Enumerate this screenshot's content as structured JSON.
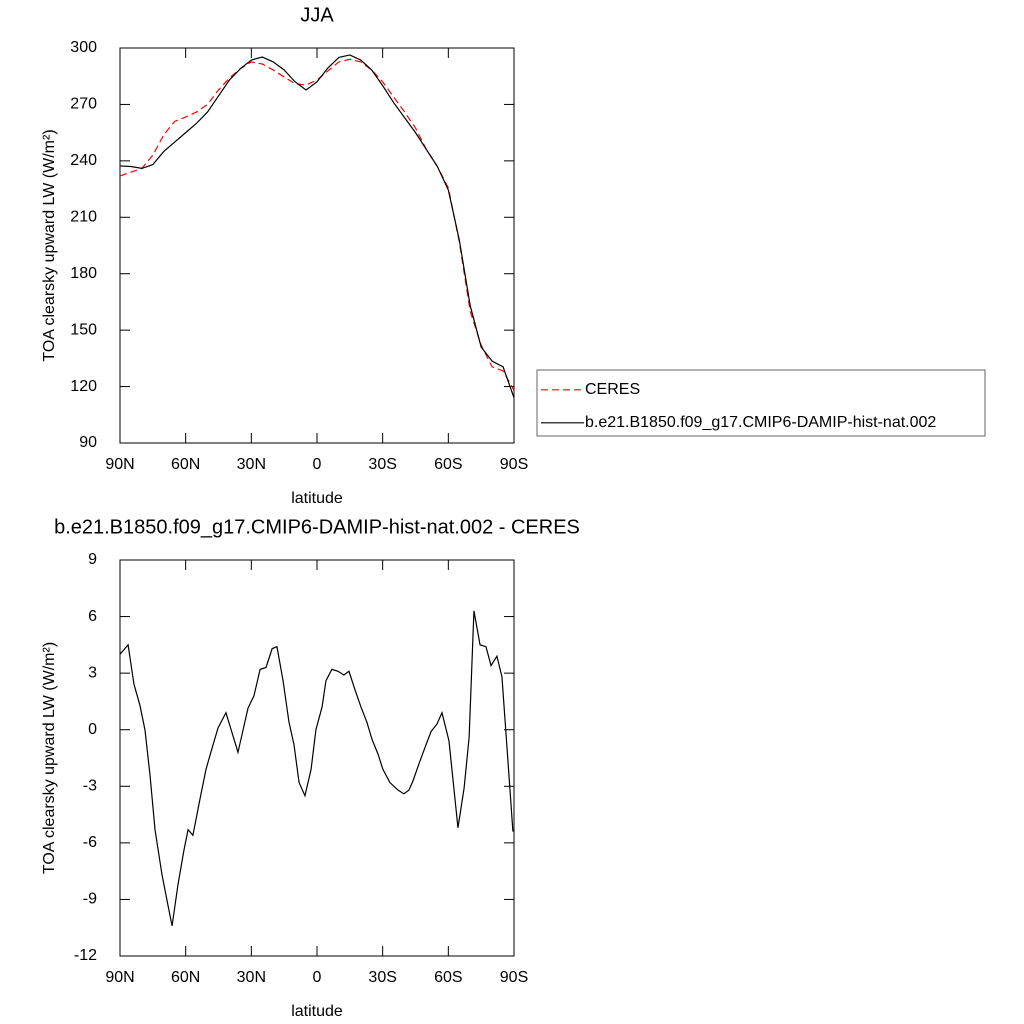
{
  "chart_data": [
    {
      "type": "line",
      "title": "JJA",
      "x_label": "latitude",
      "y_label": "TOA clearsky upward LW (W/m²)",
      "x": [
        90,
        85,
        80,
        75,
        70,
        65,
        60,
        55,
        50,
        45,
        40,
        35,
        30,
        25,
        20,
        15,
        10,
        5,
        0,
        -5,
        -10,
        -15,
        -20,
        -25,
        -30,
        -35,
        -40,
        -45,
        -50,
        -55,
        -60,
        -65,
        -70,
        -75,
        -80,
        -85,
        -90
      ],
      "xlim": [
        90,
        -90
      ],
      "xticks": [
        {
          "value": 90,
          "label": "90N"
        },
        {
          "value": 60,
          "label": "60N"
        },
        {
          "value": 30,
          "label": "30N"
        },
        0,
        {
          "value": -30,
          "label": "30S"
        },
        {
          "value": -60,
          "label": "60S"
        },
        {
          "value": -90,
          "label": "90S"
        }
      ],
      "ylim": [
        90,
        300
      ],
      "yticks": [
        90,
        120,
        150,
        180,
        210,
        240,
        270,
        300
      ],
      "legend": "right",
      "series": [
        {
          "name": "CERES",
          "color": "#ff0000",
          "line_style": "dashed",
          "values": [
            232,
            234,
            236,
            243,
            253.8,
            261,
            263.3,
            266,
            270,
            277.7,
            284,
            289,
            292.6,
            291.5,
            288.3,
            284.6,
            281,
            280.3,
            283,
            287.8,
            292.6,
            294,
            292.6,
            288.3,
            282,
            274,
            266,
            257.5,
            246,
            237,
            225.6,
            197,
            160,
            142,
            130.5,
            128.3,
            118
          ]
        },
        {
          "name": "b.e21.B1850.f09_g17.CMIP6-DAMIP-hist-nat.002",
          "color": "#000000",
          "line_style": "solid",
          "values": [
            237.3,
            237,
            236,
            238,
            245,
            250,
            255,
            260,
            266,
            274.5,
            283,
            289,
            293.6,
            295.2,
            292.6,
            288.3,
            282,
            277.7,
            282,
            289.4,
            295,
            296.3,
            293.6,
            288.3,
            280,
            271,
            263,
            255,
            246,
            237,
            224.5,
            198,
            163,
            141,
            133.5,
            130.5,
            114
          ]
        }
      ]
    },
    {
      "type": "line",
      "title": "b.e21.B1850.f09_g17.CMIP6-DAMIP-hist-nat.002 - CERES",
      "x_label": "latitude",
      "y_label": "TOA clearsky upward LW (W/m²)",
      "x": [
        90,
        86.3,
        83.6,
        80.9,
        78.6,
        76.3,
        74.0,
        70.8,
        68.1,
        66.2,
        63.5,
        60.8,
        58.9,
        56.7,
        53.5,
        50.7,
        48.0,
        45.2,
        41.6,
        36.1,
        31.5,
        28.8,
        26.0,
        23.3,
        20.5,
        18.3,
        15.5,
        12.8,
        10.5,
        8.2,
        5.5,
        2.7,
        0.5,
        -2.3,
        -4.1,
        -6.8,
        -9.6,
        -12.3,
        -14.6,
        -17.4,
        -20.1,
        -22.8,
        -25.1,
        -27.9,
        -30.1,
        -33.3,
        -37.0,
        -39.7,
        -42.0,
        -43.9,
        -46.6,
        -49.8,
        -52.1,
        -54.8,
        -57.1,
        -60.3,
        -64.4,
        -67.2,
        -69.5,
        -71.7,
        -74.5,
        -77.2,
        -79.5,
        -82.2,
        -84.5,
        -87.2,
        -89.5
      ],
      "values": [
        4.0,
        4.5,
        2.4,
        1.3,
        0,
        -2.4,
        -5.3,
        -7.7,
        -9.3,
        -10.4,
        -8.2,
        -6.4,
        -5.3,
        -5.6,
        -3.7,
        -2.1,
        -1.0,
        0.1,
        0.9,
        -1.2,
        1.15,
        1.8,
        3.2,
        3.3,
        4.3,
        4.4,
        2.6,
        0.4,
        -0.8,
        -2.8,
        -3.5,
        -2.1,
        0,
        1.2,
        2.6,
        3.2,
        3.1,
        2.9,
        3.1,
        2.1,
        1.2,
        0.4,
        -0.5,
        -1.3,
        -2.1,
        -2.8,
        -3.2,
        -3.4,
        -3.2,
        -2.7,
        -1.8,
        -0.8,
        -0.1,
        0.3,
        0.9,
        -0.6,
        -5.2,
        -3.1,
        -0.4,
        6.3,
        4.5,
        4.4,
        3.4,
        3.9,
        2.8,
        -1.6,
        -5.4
      ],
      "color": "#000000",
      "xlim": [
        90,
        -90
      ],
      "xticks": [
        {
          "value": 90,
          "label": "90N"
        },
        {
          "value": 60,
          "label": "60N"
        },
        {
          "value": 30,
          "label": "30N"
        },
        0,
        {
          "value": -30,
          "label": "30S"
        },
        {
          "value": -60,
          "label": "60S"
        },
        {
          "value": -90,
          "label": "90S"
        }
      ],
      "ylim": [
        -12,
        9
      ],
      "yticks": [
        -12,
        -9,
        -6,
        -3,
        0,
        3,
        6,
        9
      ]
    }
  ]
}
